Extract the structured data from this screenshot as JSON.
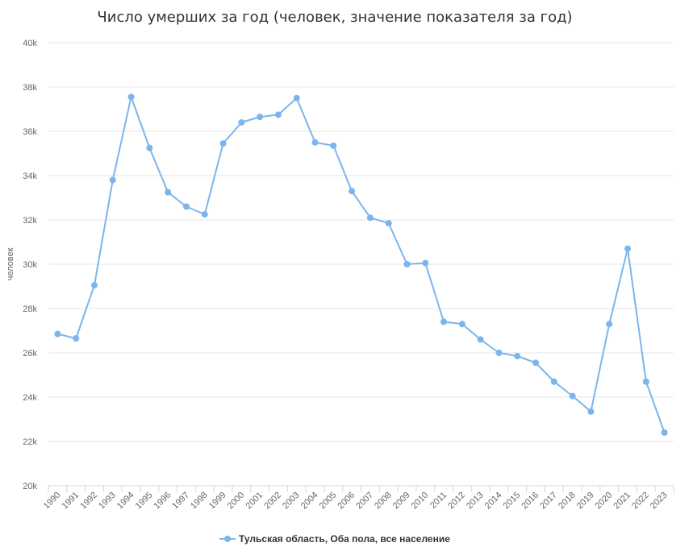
{
  "chart_data": {
    "type": "line",
    "title": "Число умерших за год (человек, значение показателя за год)",
    "xlabel": "",
    "ylabel": "человек",
    "ylim": [
      20000,
      40000
    ],
    "yticks": [
      20000,
      22000,
      24000,
      26000,
      28000,
      30000,
      32000,
      34000,
      36000,
      38000,
      40000
    ],
    "ytick_labels": [
      "20k",
      "22k",
      "24k",
      "26k",
      "28k",
      "30k",
      "32k",
      "34k",
      "36k",
      "38k",
      "40k"
    ],
    "categories": [
      "1990",
      "1991",
      "1992",
      "1993",
      "1994",
      "1995",
      "1996",
      "1997",
      "1998",
      "1999",
      "2000",
      "2001",
      "2002",
      "2003",
      "2004",
      "2005",
      "2006",
      "2007",
      "2008",
      "2009",
      "2010",
      "2011",
      "2012",
      "2013",
      "2014",
      "2015",
      "2016",
      "2017",
      "2018",
      "2019",
      "2020",
      "2021",
      "2022",
      "2023"
    ],
    "series": [
      {
        "name": "Тульская область, Оба пола, все население",
        "color": "#7cb5ec",
        "values": [
          26850,
          26650,
          29050,
          33800,
          37550,
          35250,
          33250,
          32600,
          32250,
          35450,
          36400,
          36650,
          36750,
          37500,
          35500,
          35350,
          33300,
          32100,
          31850,
          30000,
          30050,
          27400,
          27300,
          26600,
          26000,
          25850,
          25550,
          24700,
          24050,
          23350,
          27300,
          30700,
          24700,
          22400
        ]
      }
    ],
    "grid": true,
    "legend_position": "bottom-center"
  }
}
